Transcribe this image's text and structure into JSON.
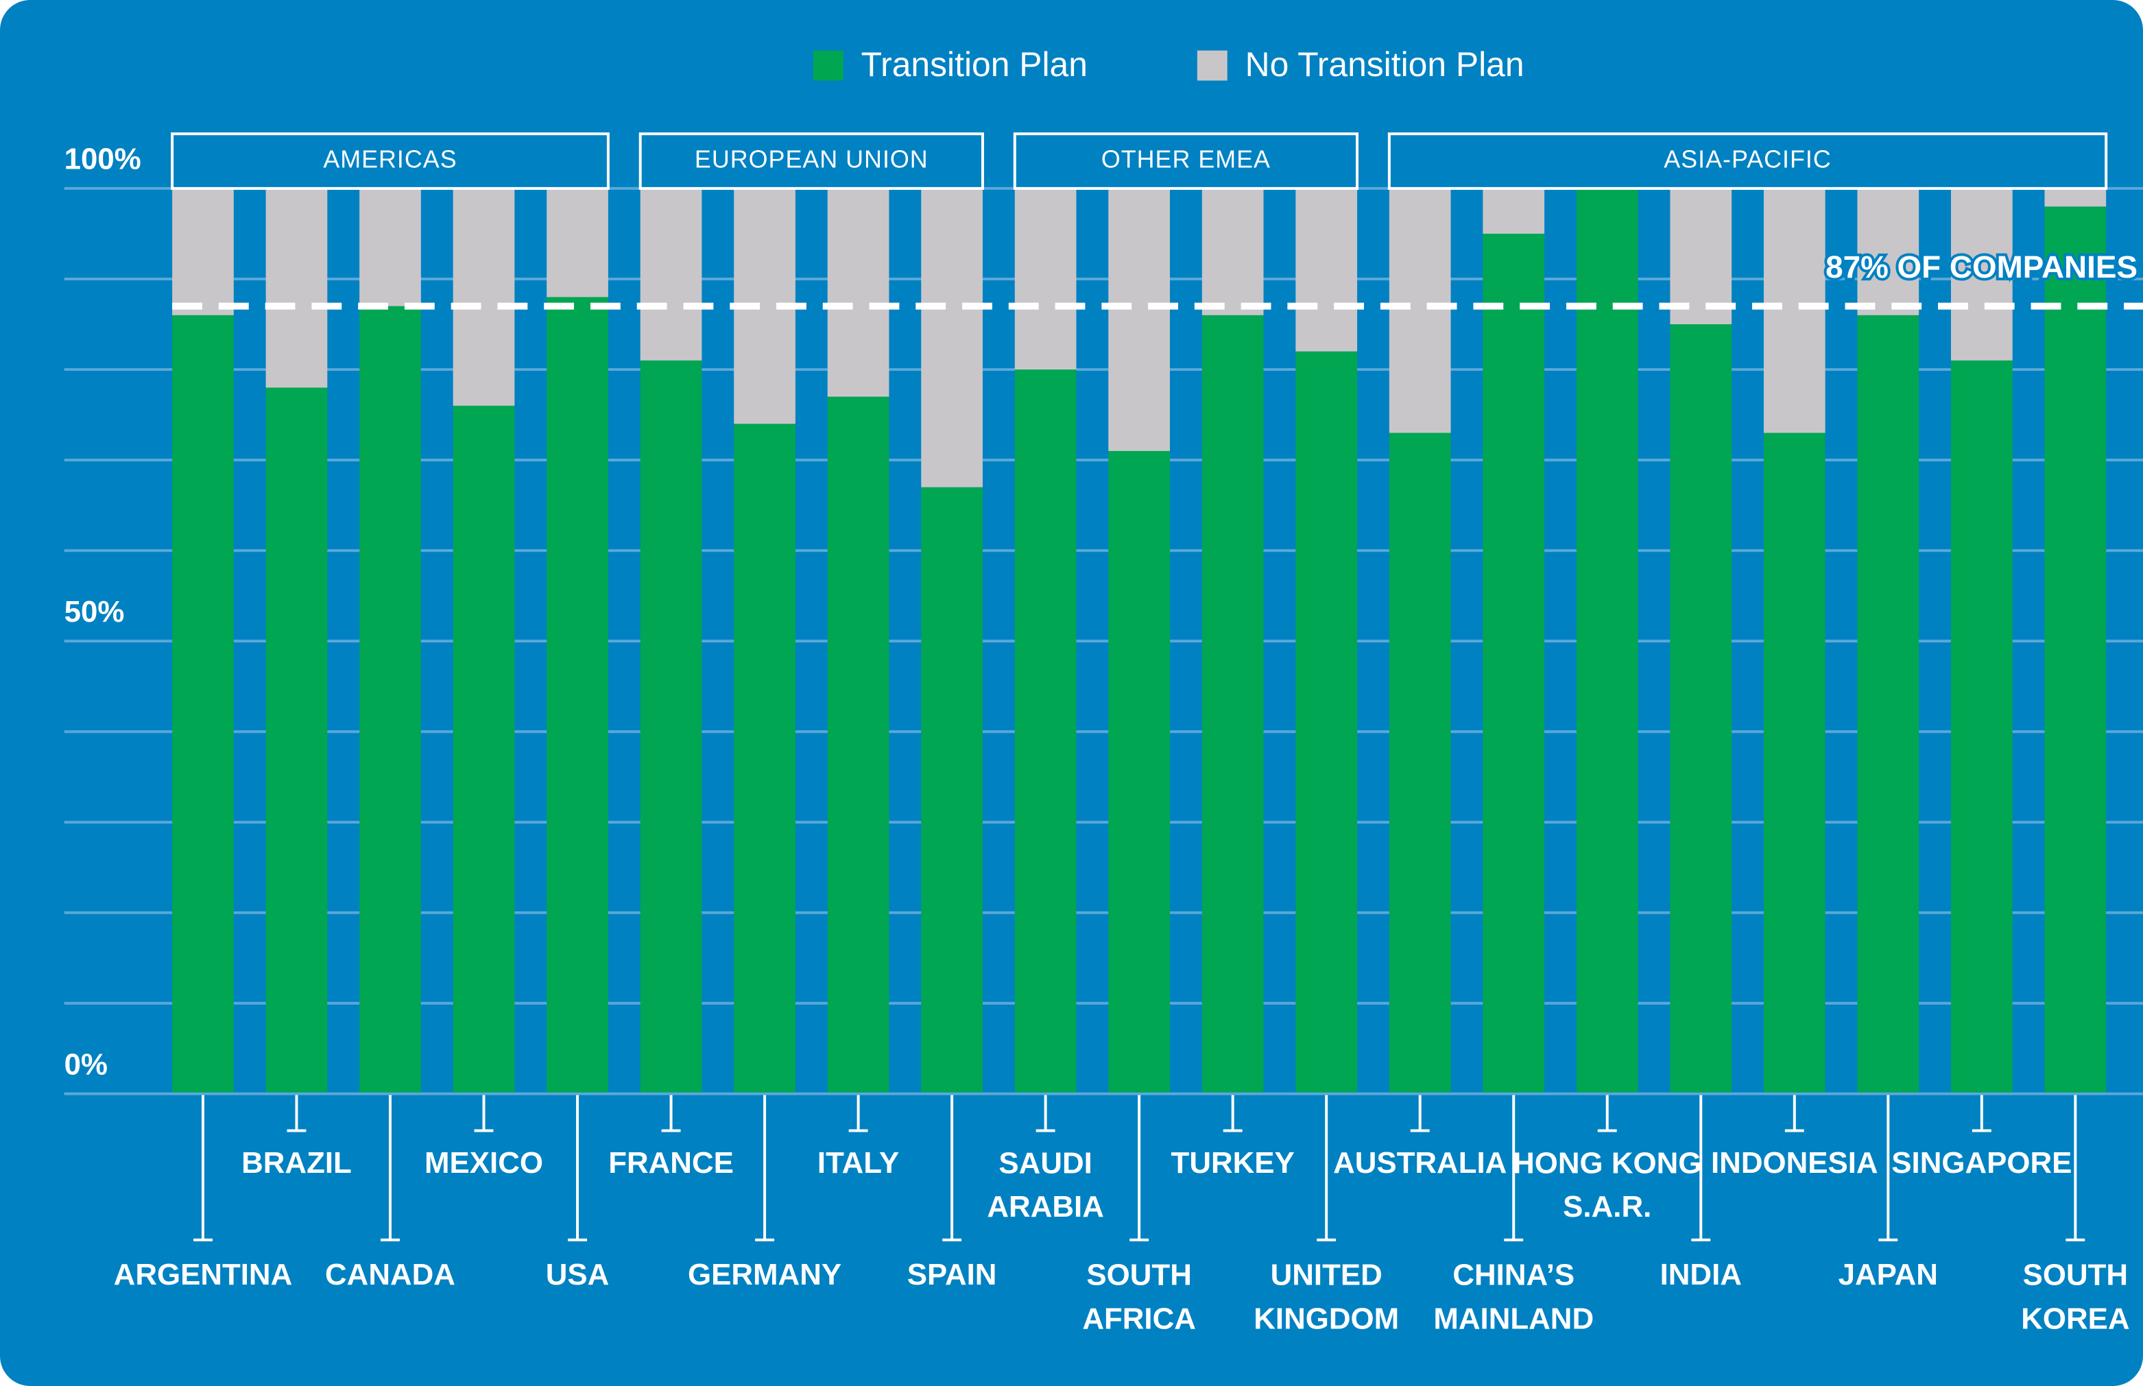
{
  "chart_data": {
    "type": "stacked_bar",
    "groups": [
      {
        "label": "AMERICAS",
        "categories": [
          "ARGENTINA",
          "BRAZIL",
          "CANADA",
          "MEXICO",
          "USA"
        ]
      },
      {
        "label": "EUROPEAN UNION",
        "categories": [
          "FRANCE",
          "GERMANY",
          "ITALY",
          "SPAIN"
        ]
      },
      {
        "label": "OTHER EMEA",
        "categories": [
          "SAUDI\nARABIA",
          "SOUTH\nAFRICA",
          "TURKEY",
          "UNITED\nKINGDOM"
        ]
      },
      {
        "label": "ASIA-PACIFIC",
        "categories": [
          "AUSTRALIA",
          "CHINA’S\nMAINLAND",
          "HONG KONG\nS.A.R.",
          "INDIA",
          "INDONESIA",
          "JAPAN",
          "SINGAPORE",
          "SOUTH\nKOREA"
        ]
      }
    ],
    "series": [
      {
        "name": "Transition Plan",
        "color": "#00a651",
        "values": [
          86,
          78,
          87,
          76,
          88,
          81,
          74,
          77,
          67,
          80,
          71,
          86,
          82,
          73,
          95,
          100,
          85,
          73,
          86,
          81,
          98
        ]
      },
      {
        "name": "No Transition Plan",
        "color": "#c9c6c9",
        "values": [
          14,
          22,
          13,
          24,
          12,
          19,
          26,
          23,
          33,
          20,
          29,
          14,
          18,
          27,
          5,
          0,
          15,
          27,
          14,
          19,
          2
        ]
      }
    ],
    "ylim": [
      0,
      100
    ],
    "yticks": [
      {
        "value": 0,
        "label": "0%"
      },
      {
        "value": 50,
        "label": "50%"
      },
      {
        "value": 100,
        "label": "100%"
      }
    ],
    "grid_lines": [
      0,
      10,
      20,
      30,
      40,
      50,
      60,
      70,
      80,
      90,
      100
    ],
    "reference_line": {
      "value": 87,
      "label": "87% OF COMPANIES"
    },
    "grid": true
  }
}
